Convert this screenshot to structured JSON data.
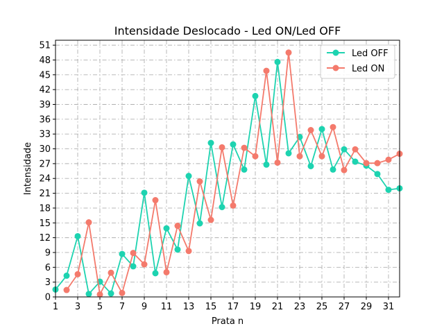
{
  "chart_data": {
    "type": "line",
    "title": "Intensidade Deslocado - Led ON/Led OFF",
    "xlabel": "Prata n",
    "ylabel": "Intensidade",
    "xlim": [
      1,
      32
    ],
    "ylim": [
      0,
      52
    ],
    "xticks": [
      1,
      3,
      5,
      7,
      9,
      11,
      13,
      15,
      17,
      19,
      21,
      23,
      25,
      27,
      29,
      31
    ],
    "yticks": [
      0,
      3,
      6,
      9,
      12,
      15,
      18,
      21,
      24,
      27,
      30,
      33,
      36,
      39,
      42,
      45,
      48,
      51
    ],
    "grid": true,
    "legend_position": "top-right",
    "series": [
      {
        "name": "Led OFF",
        "color": "#1dd3b0",
        "x": [
          1,
          2,
          3,
          4,
          5,
          6,
          7,
          8,
          9,
          10,
          11,
          12,
          13,
          14,
          15,
          16,
          17,
          18,
          19,
          20,
          21,
          22,
          23,
          24,
          25,
          26,
          27,
          28,
          29,
          30,
          31,
          32
        ],
        "values": [
          1.5,
          4.3,
          12.3,
          0.6,
          3.1,
          0.7,
          8.7,
          6.2,
          21.1,
          4.8,
          13.9,
          9.6,
          24.5,
          14.9,
          31.2,
          18.2,
          30.9,
          25.8,
          40.7,
          26.8,
          47.6,
          29.1,
          32.4,
          26.5,
          34.0,
          25.8,
          29.9,
          27.4,
          26.6,
          24.9,
          21.7,
          22.0
        ]
      },
      {
        "name": "Led ON",
        "color": "#f47a6c",
        "x": [
          2,
          3,
          4,
          5,
          6,
          7,
          8,
          9,
          10,
          11,
          12,
          13,
          14,
          15,
          16,
          17,
          18,
          19,
          20,
          21,
          22,
          23,
          24,
          25,
          26,
          27,
          28,
          29,
          30,
          31,
          32
        ],
        "values": [
          1.4,
          4.6,
          15.1,
          0.5,
          4.9,
          0.8,
          8.9,
          6.6,
          19.6,
          5.0,
          14.4,
          9.3,
          23.4,
          15.6,
          30.3,
          18.5,
          30.2,
          28.5,
          45.8,
          27.2,
          49.5,
          28.5,
          33.8,
          28.5,
          34.4,
          25.7,
          29.9,
          27.1,
          27.1,
          27.8,
          29.0
        ]
      }
    ]
  }
}
